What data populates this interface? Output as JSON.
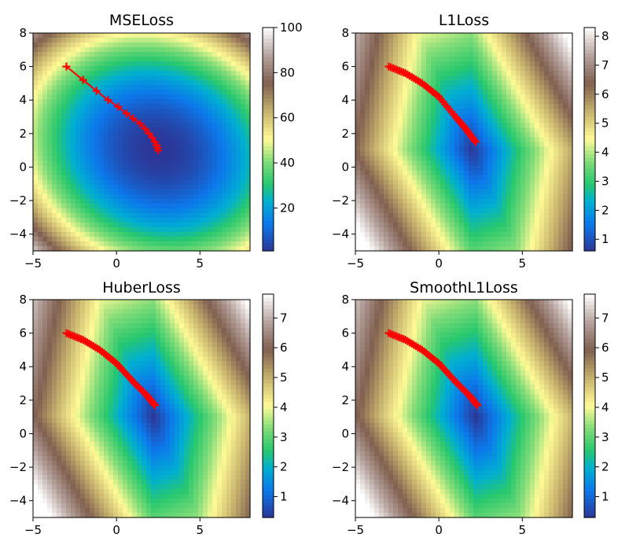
{
  "chart_data": [
    {
      "type": "heatmap",
      "title": "MSELoss",
      "xlim": [
        -5,
        8
      ],
      "ylim": [
        -5,
        8
      ],
      "x_ticks": [
        "−5",
        "0",
        "5"
      ],
      "x_tick_values": [
        -5,
        0,
        5
      ],
      "y_ticks": [
        "−4",
        "−2",
        "0",
        "2",
        "4",
        "6",
        "8"
      ],
      "y_tick_values": [
        -4,
        -2,
        0,
        2,
        4,
        6,
        8
      ],
      "colorbar_ticks": [
        "20",
        "40",
        "60",
        "80",
        "100"
      ],
      "colorbar_tick_values": [
        20,
        40,
        60,
        80,
        100
      ],
      "colorbar_range": [
        1,
        100
      ],
      "colormap": "terrain",
      "minimum": [
        2.5,
        1.0
      ],
      "path_color": "#ff0000",
      "path_marker": "+",
      "path_x": [
        -3.0,
        -2.0,
        -1.2,
        -0.5,
        0.1,
        0.6,
        1.0,
        1.4,
        1.7,
        1.95,
        2.15,
        2.3,
        2.4,
        2.45,
        2.5
      ],
      "path_y": [
        6.0,
        5.2,
        4.55,
        4.0,
        3.6,
        3.2,
        2.9,
        2.6,
        2.3,
        2.0,
        1.75,
        1.5,
        1.3,
        1.15,
        1.0
      ]
    },
    {
      "type": "heatmap",
      "title": "L1Loss",
      "xlim": [
        -5,
        8
      ],
      "ylim": [
        -5,
        8
      ],
      "x_ticks": [
        "−5",
        "0",
        "5"
      ],
      "x_tick_values": [
        -5,
        0,
        5
      ],
      "y_ticks": [
        "−4",
        "−2",
        "0",
        "2",
        "4",
        "6",
        "8"
      ],
      "y_tick_values": [
        -4,
        -2,
        0,
        2,
        4,
        6,
        8
      ],
      "colorbar_ticks": [
        "1",
        "2",
        "3",
        "4",
        "5",
        "6",
        "7",
        "8"
      ],
      "colorbar_tick_values": [
        1,
        2,
        3,
        4,
        5,
        6,
        7,
        8
      ],
      "colorbar_range": [
        0.6,
        8.3
      ],
      "colormap": "terrain",
      "minimum": [
        2.0,
        1.0
      ],
      "path_color": "#ff0000",
      "path_marker": "+",
      "path_x": [
        -3.0,
        -2.0,
        -1.0,
        0.0,
        1.0,
        1.6,
        2.2
      ],
      "path_y": [
        6.0,
        5.6,
        5.0,
        4.2,
        3.0,
        2.3,
        1.5
      ]
    },
    {
      "type": "heatmap",
      "title": "HuberLoss",
      "xlim": [
        -5,
        8
      ],
      "ylim": [
        -5,
        8
      ],
      "x_ticks": [
        "−5",
        "0",
        "5"
      ],
      "x_tick_values": [
        -5,
        0,
        5
      ],
      "y_ticks": [
        "−4",
        "−2",
        "0",
        "2",
        "4",
        "6",
        "8"
      ],
      "y_tick_values": [
        -4,
        -2,
        0,
        2,
        4,
        6,
        8
      ],
      "colorbar_ticks": [
        "1",
        "2",
        "3",
        "4",
        "5",
        "6",
        "7"
      ],
      "colorbar_tick_values": [
        1,
        2,
        3,
        4,
        5,
        6,
        7
      ],
      "colorbar_range": [
        0.3,
        7.8
      ],
      "colormap": "terrain",
      "minimum": [
        2.2,
        1.0
      ],
      "path_color": "#ff0000",
      "path_marker": "+",
      "path_x": [
        -3.0,
        -2.0,
        -1.0,
        0.0,
        1.0,
        1.8,
        2.3
      ],
      "path_y": [
        6.0,
        5.6,
        5.0,
        4.2,
        3.1,
        2.3,
        1.7
      ]
    },
    {
      "type": "heatmap",
      "title": "SmoothL1Loss",
      "xlim": [
        -5,
        8
      ],
      "ylim": [
        -5,
        8
      ],
      "x_ticks": [
        "−5",
        "0",
        "5"
      ],
      "x_tick_values": [
        -5,
        0,
        5
      ],
      "y_ticks": [
        "−4",
        "−2",
        "0",
        "2",
        "4",
        "6",
        "8"
      ],
      "y_tick_values": [
        -4,
        -2,
        0,
        2,
        4,
        6,
        8
      ],
      "colorbar_ticks": [
        "1",
        "2",
        "3",
        "4",
        "5",
        "6",
        "7"
      ],
      "colorbar_tick_values": [
        1,
        2,
        3,
        4,
        5,
        6,
        7
      ],
      "colorbar_range": [
        0.3,
        7.8
      ],
      "colormap": "terrain",
      "minimum": [
        2.2,
        1.0
      ],
      "path_color": "#ff0000",
      "path_marker": "+",
      "path_x": [
        -3.0,
        -2.0,
        -1.0,
        0.0,
        1.0,
        1.8,
        2.3
      ],
      "path_y": [
        6.0,
        5.6,
        5.0,
        4.2,
        3.1,
        2.3,
        1.7
      ]
    }
  ]
}
